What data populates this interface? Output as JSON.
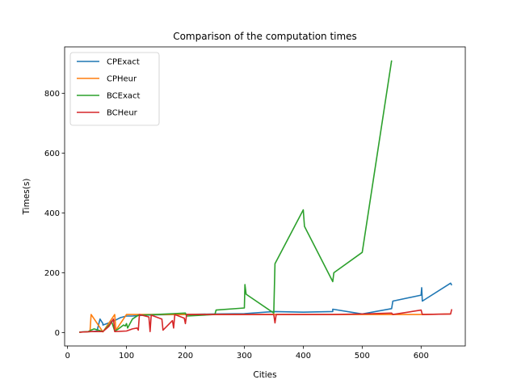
{
  "chart_data": {
    "type": "line",
    "title": "Comparison of the computation times",
    "xlabel": "Cities",
    "ylabel": "Times(s)",
    "xlim": [
      -5,
      675
    ],
    "ylim": [
      -45,
      955
    ],
    "xticks": [
      0,
      100,
      200,
      300,
      400,
      500,
      600
    ],
    "yticks": [
      0,
      200,
      400,
      600,
      800
    ],
    "grid": false,
    "legend_position": "top-left",
    "series": [
      {
        "name": "CPExact",
        "color": "#1f77b4",
        "points": [
          [
            20,
            1
          ],
          [
            25,
            2
          ],
          [
            30,
            2
          ],
          [
            40,
            3
          ],
          [
            45,
            4
          ],
          [
            50,
            5
          ],
          [
            55,
            45
          ],
          [
            60,
            30
          ],
          [
            60,
            25
          ],
          [
            70,
            32
          ],
          [
            75,
            38
          ],
          [
            80,
            40
          ],
          [
            85,
            45
          ],
          [
            90,
            50
          ],
          [
            100,
            55
          ],
          [
            110,
            55
          ],
          [
            120,
            57
          ],
          [
            130,
            58
          ],
          [
            150,
            59
          ],
          [
            200,
            60
          ],
          [
            250,
            62
          ],
          [
            300,
            63
          ],
          [
            350,
            70
          ],
          [
            400,
            68
          ],
          [
            450,
            70
          ],
          [
            450,
            78
          ],
          [
            500,
            62
          ],
          [
            550,
            80
          ],
          [
            552,
            105
          ],
          [
            600,
            125
          ],
          [
            601,
            150
          ],
          [
            602,
            105
          ],
          [
            650,
            165
          ],
          [
            652,
            158
          ]
        ]
      },
      {
        "name": "CPHeur",
        "color": "#ff7f0e",
        "points": [
          [
            20,
            1
          ],
          [
            38,
            3
          ],
          [
            40,
            60
          ],
          [
            60,
            2
          ],
          [
            80,
            60
          ],
          [
            82,
            8
          ],
          [
            100,
            60
          ],
          [
            120,
            60
          ],
          [
            150,
            60
          ],
          [
            200,
            60
          ],
          [
            250,
            60
          ],
          [
            300,
            60
          ],
          [
            350,
            60
          ],
          [
            400,
            60
          ],
          [
            450,
            60
          ],
          [
            500,
            60
          ],
          [
            550,
            60
          ],
          [
            600,
            60
          ],
          [
            650,
            62
          ]
        ]
      },
      {
        "name": "BCExact",
        "color": "#2ca02c",
        "points": [
          [
            20,
            1
          ],
          [
            35,
            3
          ],
          [
            40,
            8
          ],
          [
            45,
            12
          ],
          [
            60,
            3
          ],
          [
            75,
            35
          ],
          [
            80,
            5
          ],
          [
            85,
            10
          ],
          [
            95,
            25
          ],
          [
            98,
            22
          ],
          [
            100,
            30
          ],
          [
            102,
            15
          ],
          [
            110,
            45
          ],
          [
            120,
            58
          ],
          [
            150,
            60
          ],
          [
            180,
            63
          ],
          [
            200,
            65
          ],
          [
            202,
            55
          ],
          [
            250,
            60
          ],
          [
            252,
            75
          ],
          [
            300,
            82
          ],
          [
            301,
            160
          ],
          [
            303,
            128
          ],
          [
            350,
            65
          ],
          [
            352,
            230
          ],
          [
            400,
            410
          ],
          [
            402,
            355
          ],
          [
            450,
            170
          ],
          [
            452,
            200
          ],
          [
            500,
            268
          ],
          [
            550,
            910
          ]
        ]
      },
      {
        "name": "BCHeur",
        "color": "#d62728",
        "points": [
          [
            20,
            1
          ],
          [
            40,
            3
          ],
          [
            60,
            3
          ],
          [
            70,
            20
          ],
          [
            78,
            45
          ],
          [
            80,
            3
          ],
          [
            100,
            5
          ],
          [
            110,
            12
          ],
          [
            118,
            15
          ],
          [
            120,
            8
          ],
          [
            122,
            60
          ],
          [
            138,
            52
          ],
          [
            140,
            3
          ],
          [
            142,
            58
          ],
          [
            160,
            45
          ],
          [
            162,
            8
          ],
          [
            178,
            40
          ],
          [
            180,
            15
          ],
          [
            182,
            60
          ],
          [
            198,
            48
          ],
          [
            200,
            30
          ],
          [
            202,
            60
          ],
          [
            300,
            60
          ],
          [
            350,
            60
          ],
          [
            352,
            32
          ],
          [
            354,
            60
          ],
          [
            400,
            60
          ],
          [
            450,
            60
          ],
          [
            500,
            62
          ],
          [
            550,
            65
          ],
          [
            552,
            60
          ],
          [
            600,
            75
          ],
          [
            602,
            60
          ],
          [
            650,
            62
          ],
          [
            652,
            78
          ]
        ]
      }
    ]
  }
}
